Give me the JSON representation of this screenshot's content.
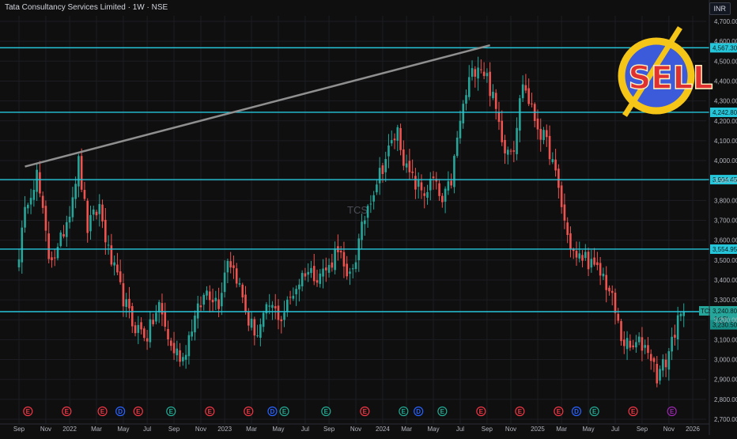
{
  "header": {
    "title": "Tata Consultancy Services Limited · 1W · NSE",
    "currency": "INR"
  },
  "watermark": "TCS",
  "badge": {
    "text": "SELL",
    "ring_color": "#f5c518",
    "fill_color": "#3b5bdb",
    "text_color": "#e03131"
  },
  "price_axis": {
    "ticks": [
      "4,700.00",
      "4,600.00",
      "4,500.00",
      "4,400.00",
      "4,300.00",
      "4,200.00",
      "4,100.00",
      "4,000.00",
      "3,900.00",
      "3,800.00",
      "3,700.00",
      "3,600.00",
      "3,500.00",
      "3,400.00",
      "3,300.00",
      "3,200.00",
      "3,100.00",
      "3,000.00",
      "2,900.00",
      "2,800.00",
      "2,700.00"
    ],
    "tick_values": [
      4700,
      4600,
      4500,
      4400,
      4300,
      4200,
      4100,
      4000,
      3900,
      3800,
      3700,
      3600,
      3500,
      3400,
      3300,
      3200,
      3100,
      3000,
      2900,
      2800,
      2700
    ]
  },
  "time_axis": {
    "ticks": [
      "Sep",
      "Nov",
      "2022",
      "Mar",
      "May",
      "Jul",
      "Sep",
      "Nov",
      "2023",
      "Mar",
      "May",
      "Jul",
      "Sep",
      "Nov",
      "2024",
      "Mar",
      "May",
      "Jul",
      "Sep",
      "Nov",
      "2025",
      "Mar",
      "May",
      "Jul",
      "Sep",
      "Nov",
      "2026"
    ],
    "tick_weeks": [
      0,
      9,
      17,
      26,
      35,
      43,
      52,
      61,
      69,
      78,
      87,
      96,
      104,
      113,
      122,
      130,
      139,
      148,
      157,
      165,
      174,
      182,
      191,
      200,
      209,
      218,
      226
    ]
  },
  "levels": {
    "values": [
      4567.3,
      4242.8,
      3904.45,
      3554.95,
      3240.8
    ],
    "labels": [
      "4,567.30",
      "4,242.80",
      "3,904.45",
      "3,554.95",
      "3,240.80"
    ],
    "color": "#26c6da"
  },
  "last_price": {
    "symbol": "TCS",
    "price_label": "3,240.80",
    "countdown": "1d 5h",
    "secondary_label": "3,230.50",
    "value": 3240.8,
    "secondary_value": 3230.5
  },
  "events": {
    "items": [
      {
        "letter": "E",
        "week": 3,
        "color": "#f23645"
      },
      {
        "letter": "E",
        "week": 16,
        "color": "#f23645"
      },
      {
        "letter": "E",
        "week": 28,
        "color": "#f23645"
      },
      {
        "letter": "D",
        "week": 34,
        "color": "#2962ff"
      },
      {
        "letter": "E",
        "week": 40,
        "color": "#f23645"
      },
      {
        "letter": "E",
        "week": 51,
        "color": "#22ab94"
      },
      {
        "letter": "E",
        "week": 64,
        "color": "#f23645"
      },
      {
        "letter": "E",
        "week": 77,
        "color": "#f23645"
      },
      {
        "letter": "D",
        "week": 85,
        "color": "#2962ff"
      },
      {
        "letter": "E",
        "week": 89,
        "color": "#22ab94"
      },
      {
        "letter": "E",
        "week": 103,
        "color": "#22ab94"
      },
      {
        "letter": "E",
        "week": 116,
        "color": "#f23645"
      },
      {
        "letter": "E",
        "week": 129,
        "color": "#22ab94"
      },
      {
        "letter": "D",
        "week": 134,
        "color": "#2962ff"
      },
      {
        "letter": "E",
        "week": 142,
        "color": "#22ab94"
      },
      {
        "letter": "E",
        "week": 155,
        "color": "#f23645"
      },
      {
        "letter": "E",
        "week": 168,
        "color": "#f23645"
      },
      {
        "letter": "E",
        "week": 181,
        "color": "#f23645"
      },
      {
        "letter": "D",
        "week": 187,
        "color": "#2962ff"
      },
      {
        "letter": "E",
        "week": 193,
        "color": "#22ab94"
      },
      {
        "letter": "E",
        "week": 206,
        "color": "#f23645"
      },
      {
        "letter": "E",
        "week": 219,
        "color": "#9c27b0"
      }
    ]
  },
  "colors": {
    "up": "#26a69a",
    "down": "#ef5350",
    "trendline": "#8f8f8f",
    "grid": "#1c1e24"
  },
  "chart_data": {
    "type": "candlestick",
    "title": "Tata Consultancy Services Limited · 1W · NSE",
    "interval": "1W",
    "x_start": "Aug 2021",
    "ylim": [
      2700,
      4720
    ],
    "anchors": [
      {
        "week": 0,
        "close": 3540
      },
      {
        "week": 3,
        "close": 3820
      },
      {
        "week": 6,
        "close": 3930
      },
      {
        "week": 10,
        "close": 3520
      },
      {
        "week": 13,
        "close": 3540
      },
      {
        "week": 17,
        "close": 3760
      },
      {
        "week": 20,
        "close": 3990
      },
      {
        "week": 23,
        "close": 3660
      },
      {
        "week": 27,
        "close": 3770
      },
      {
        "week": 30,
        "close": 3540
      },
      {
        "week": 34,
        "close": 3350
      },
      {
        "week": 38,
        "close": 3180
      },
      {
        "week": 43,
        "close": 3120
      },
      {
        "week": 47,
        "close": 3270
      },
      {
        "week": 51,
        "close": 3060
      },
      {
        "week": 55,
        "close": 3010
      },
      {
        "week": 58,
        "close": 3170
      },
      {
        "week": 63,
        "close": 3350
      },
      {
        "week": 67,
        "close": 3290
      },
      {
        "week": 70,
        "close": 3520
      },
      {
        "week": 73,
        "close": 3420
      },
      {
        "week": 77,
        "close": 3190
      },
      {
        "week": 80,
        "close": 3130
      },
      {
        "week": 84,
        "close": 3270
      },
      {
        "week": 88,
        "close": 3210
      },
      {
        "week": 92,
        "close": 3340
      },
      {
        "week": 96,
        "close": 3450
      },
      {
        "week": 100,
        "close": 3430
      },
      {
        "week": 104,
        "close": 3460
      },
      {
        "week": 107,
        "close": 3580
      },
      {
        "week": 110,
        "close": 3380
      },
      {
        "week": 113,
        "close": 3520
      },
      {
        "week": 117,
        "close": 3780
      },
      {
        "week": 120,
        "close": 3900
      },
      {
        "week": 124,
        "close": 4050
      },
      {
        "week": 127,
        "close": 4150
      },
      {
        "week": 130,
        "close": 3950
      },
      {
        "week": 133,
        "close": 3880
      },
      {
        "week": 136,
        "close": 3840
      },
      {
        "week": 139,
        "close": 3900
      },
      {
        "week": 142,
        "close": 3780
      },
      {
        "week": 145,
        "close": 3900
      },
      {
        "week": 148,
        "close": 4200
      },
      {
        "week": 151,
        "close": 4400
      },
      {
        "week": 154,
        "close": 4500
      },
      {
        "week": 157,
        "close": 4420
      },
      {
        "week": 160,
        "close": 4250
      },
      {
        "week": 163,
        "close": 4070
      },
      {
        "week": 166,
        "close": 4080
      },
      {
        "week": 169,
        "close": 4400
      },
      {
        "week": 172,
        "close": 4250
      },
      {
        "week": 175,
        "close": 4140
      },
      {
        "week": 178,
        "close": 4050
      },
      {
        "week": 181,
        "close": 3850
      },
      {
        "week": 184,
        "close": 3620
      },
      {
        "week": 187,
        "close": 3500
      },
      {
        "week": 190,
        "close": 3520
      },
      {
        "week": 193,
        "close": 3450
      },
      {
        "week": 196,
        "close": 3420
      },
      {
        "week": 199,
        "close": 3300
      },
      {
        "week": 202,
        "close": 3110
      },
      {
        "week": 205,
        "close": 3050
      },
      {
        "week": 208,
        "close": 3080
      },
      {
        "week": 211,
        "close": 3060
      },
      {
        "week": 214,
        "close": 2920
      },
      {
        "week": 217,
        "close": 2990
      },
      {
        "week": 220,
        "close": 3150
      },
      {
        "week": 223,
        "close": 3240.8
      }
    ],
    "trendline": [
      {
        "week": 2,
        "price": 3970
      },
      {
        "week": 158,
        "price": 4580
      }
    ],
    "horizontal_levels": [
      4567.3,
      4242.8,
      3904.45,
      3554.95,
      3240.8
    ]
  }
}
